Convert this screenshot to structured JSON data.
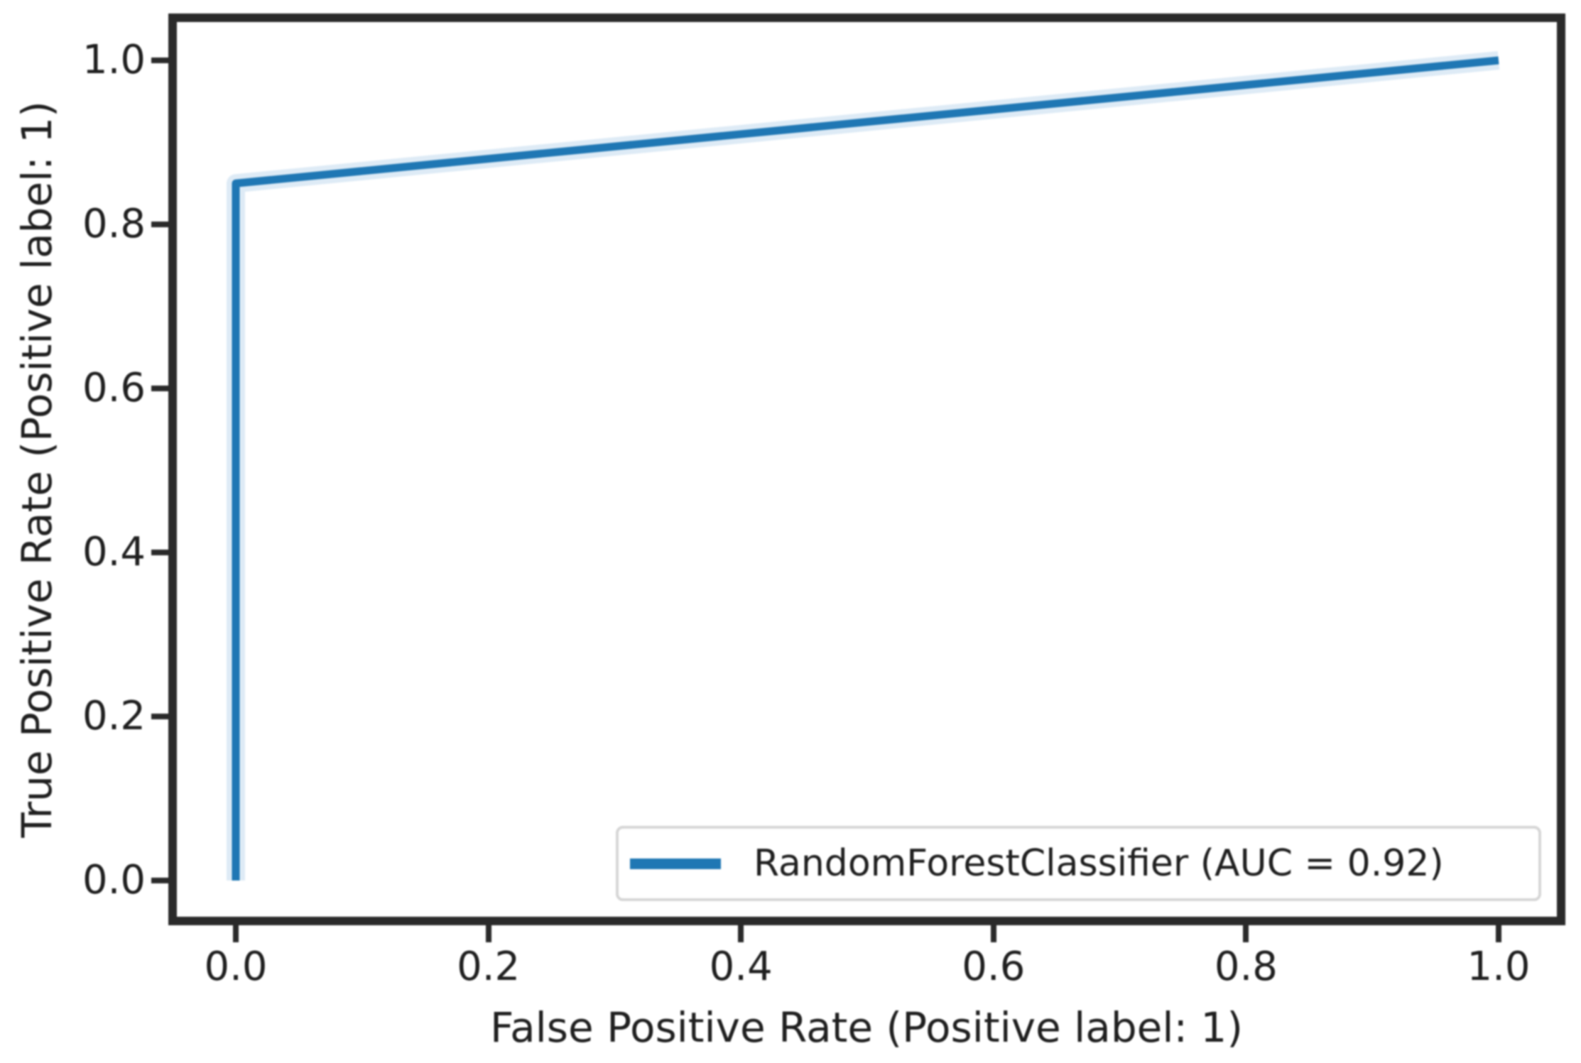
{
  "chart_data": {
    "type": "line",
    "title": "",
    "xlabel": "False Positive Rate (Positive label: 1)",
    "ylabel": "True Positive Rate (Positive label: 1)",
    "x_ticks": [
      0.0,
      0.2,
      0.4,
      0.6,
      0.8,
      1.0
    ],
    "y_ticks": [
      0.0,
      0.2,
      0.4,
      0.6,
      0.8,
      1.0
    ],
    "x_tick_labels": [
      "0.0",
      "0.2",
      "0.4",
      "0.6",
      "0.8",
      "1.0"
    ],
    "y_tick_labels": [
      "0.0",
      "0.2",
      "0.4",
      "0.6",
      "0.8",
      "1.0"
    ],
    "xlim": [
      -0.05,
      1.05
    ],
    "ylim": [
      -0.05,
      1.05
    ],
    "grid": false,
    "legend": {
      "position": "lower right",
      "entries": [
        {
          "label": "RandomForestClassifier (AUC = 0.92)",
          "color": "#1f77b4"
        }
      ]
    },
    "series": [
      {
        "name": "RandomForestClassifier",
        "auc": 0.92,
        "color": "#1f77b4",
        "points": [
          {
            "fpr": 0.0,
            "tpr": 0.0
          },
          {
            "fpr": 0.0,
            "tpr": 0.85
          },
          {
            "fpr": 1.0,
            "tpr": 1.0
          }
        ]
      }
    ]
  },
  "colors": {
    "line": "#1f77b4",
    "line_halo": "#a9cbe7",
    "axis": "#2a2a2a",
    "text": "#1f1f1f",
    "legend_border": "#d6d6d6",
    "background": "#ffffff"
  }
}
